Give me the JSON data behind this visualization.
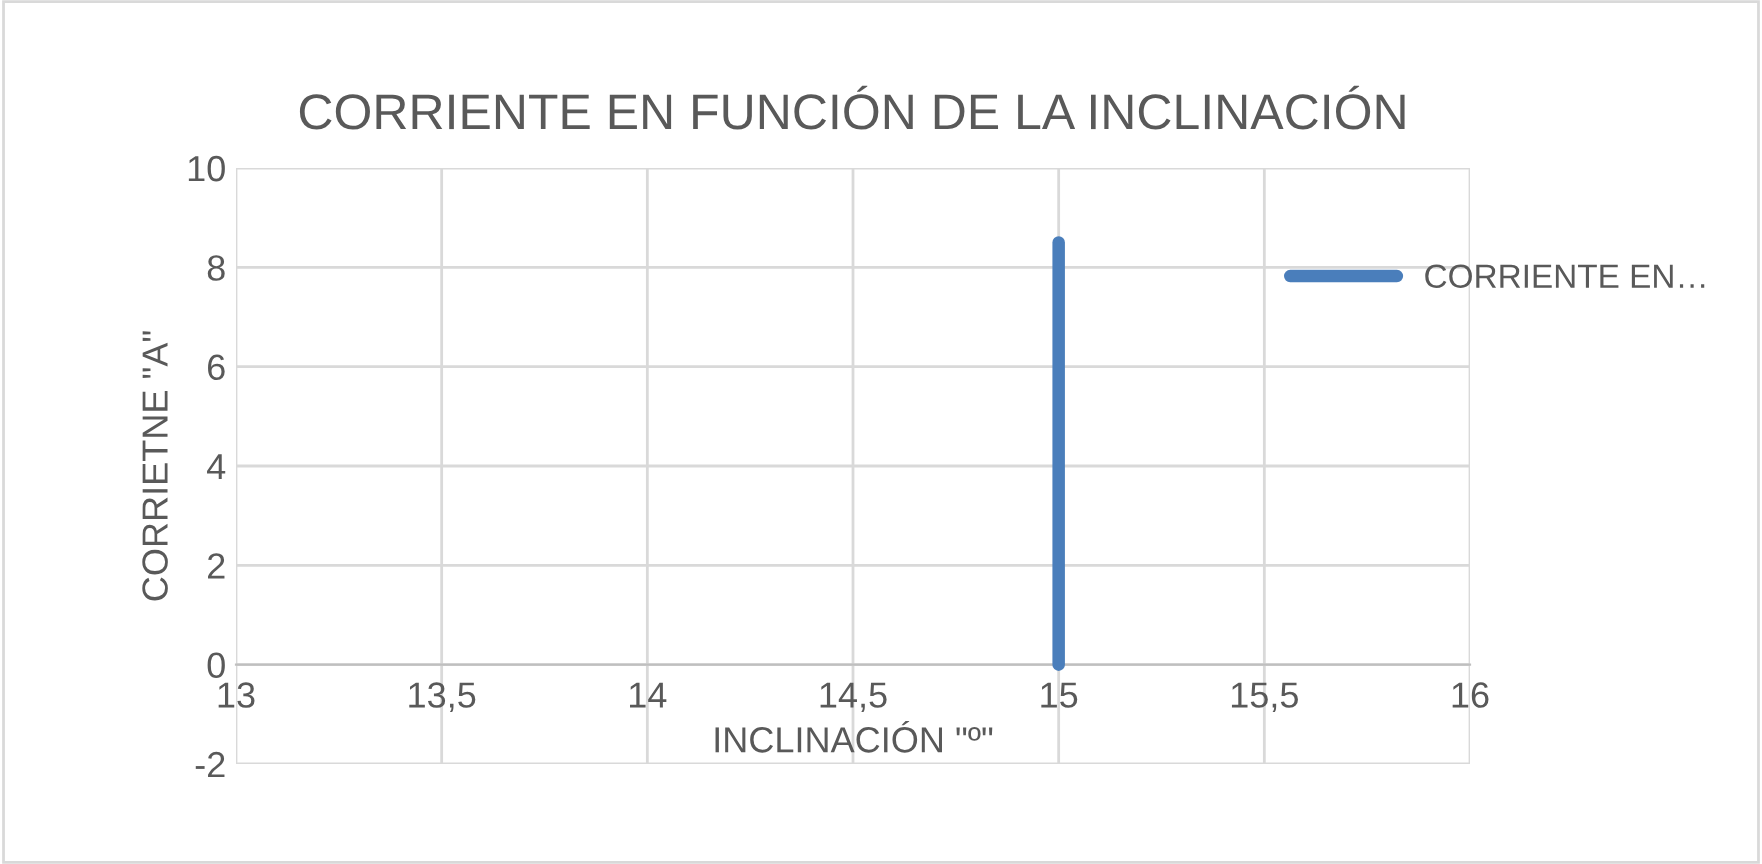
{
  "chart_data": {
    "type": "line",
    "title": "CORRIENTE EN FUNCIÓN DE LA INCLINACIÓN",
    "xlabel": "INCLINACIÓN \"º\"",
    "ylabel": "CORRIETNE \"A\"",
    "series": [
      {
        "name": "CORRIENTE EN…",
        "color": "#4a7ebb",
        "x": [
          15,
          15
        ],
        "values": [
          0,
          8.5
        ]
      }
    ],
    "xlim": [
      13,
      16
    ],
    "xticks": [
      13,
      {
        "value": 13.5,
        "label": "13,5"
      },
      14,
      {
        "value": 14.5,
        "label": "14,5"
      },
      15,
      {
        "value": 15.5,
        "label": "15,5"
      },
      16
    ],
    "ylim": [
      -2,
      10
    ],
    "yticks": [
      -2,
      0,
      2,
      4,
      6,
      8,
      10
    ],
    "grid": true,
    "legend": "right",
    "marker": "none",
    "line_style": "solid"
  }
}
